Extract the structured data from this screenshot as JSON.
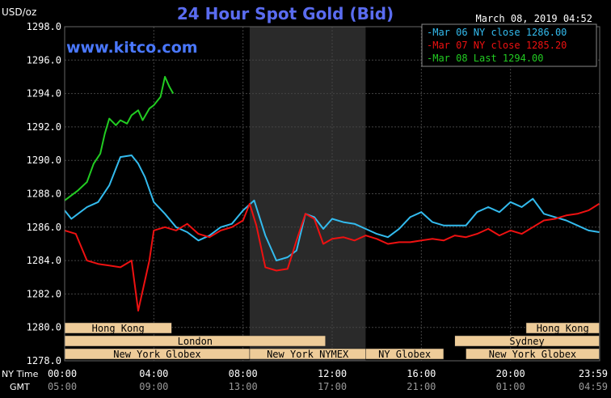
{
  "header": {
    "unit": "USD/oz",
    "title": "24 Hour Spot Gold (Bid)",
    "timestamp": "March 08, 2019 04:52",
    "watermark": "www.kitco.com"
  },
  "colors": {
    "background": "#000000",
    "title": "#5a6cf0",
    "watermark": "#4a78ff",
    "axis_text": "#ffffff",
    "grid": "#444444",
    "shade": "#2a2a2a",
    "series_mar06": "#33bbee",
    "series_mar07": "#ee1111",
    "series_mar08": "#22cc22",
    "session_bar_fill": "#eecc99",
    "session_bar_text": "#000000"
  },
  "chart_data": {
    "type": "line",
    "title": "24 Hour Spot Gold (Bid)",
    "ylabel": "USD/oz",
    "ylim": [
      1278.0,
      1298.0
    ],
    "xlim_hours_ny": [
      0,
      24
    ],
    "y_ticks": [
      "1298.0",
      "1296.0",
      "1294.0",
      "1292.0",
      "1290.0",
      "1288.0",
      "1286.0",
      "1284.0",
      "1282.0",
      "1280.0",
      "1278.0"
    ],
    "x_row_labels": [
      "NY Time",
      "GMT"
    ],
    "x_ticks_ny": [
      "00:00",
      "04:00",
      "08:00",
      "12:00",
      "16:00",
      "20:00",
      "23:59"
    ],
    "x_ticks_gmt": [
      "05:00",
      "09:00",
      "13:00",
      "17:00",
      "21:00",
      "01:00",
      "04:59"
    ],
    "shaded_region_hours": [
      8.3,
      13.5
    ],
    "grid": true,
    "legend": {
      "placement": "top-right",
      "entries": [
        {
          "label": "Mar 06 NY close 1286.00",
          "color": "#33bbee"
        },
        {
          "label": "Mar 07 NY close 1285.20",
          "color": "#ee1111"
        },
        {
          "label": "Mar 08 Last 1294.00",
          "color": "#22cc22"
        }
      ]
    },
    "series": [
      {
        "name": "Mar 06",
        "color": "#33bbee",
        "x": [
          0,
          0.3,
          0.6,
          1.0,
          1.5,
          2.0,
          2.5,
          3.0,
          3.3,
          3.6,
          4.0,
          4.5,
          5.0,
          5.5,
          6.0,
          6.5,
          7.0,
          7.5,
          8.0,
          8.5,
          9.0,
          9.5,
          10.0,
          10.4,
          10.8,
          11.2,
          11.6,
          12.0,
          12.5,
          13.0,
          13.5,
          14.0,
          14.5,
          15.0,
          15.5,
          16.0,
          16.5,
          17.0,
          17.5,
          18.0,
          18.5,
          19.0,
          19.5,
          20.0,
          20.5,
          21.0,
          21.5,
          22.0,
          22.5,
          23.0,
          23.5,
          23.98
        ],
        "y": [
          1287.0,
          1286.5,
          1286.8,
          1287.2,
          1287.5,
          1288.5,
          1290.2,
          1290.3,
          1289.8,
          1289.0,
          1287.5,
          1286.8,
          1286.0,
          1285.7,
          1285.2,
          1285.5,
          1286.0,
          1286.2,
          1287.0,
          1287.6,
          1285.5,
          1284.0,
          1284.2,
          1284.6,
          1286.8,
          1286.6,
          1285.9,
          1286.5,
          1286.3,
          1286.2,
          1285.9,
          1285.6,
          1285.4,
          1285.9,
          1286.6,
          1286.9,
          1286.3,
          1286.1,
          1286.1,
          1286.1,
          1286.9,
          1287.2,
          1286.9,
          1287.5,
          1287.2,
          1287.7,
          1286.8,
          1286.6,
          1286.4,
          1286.1,
          1285.8,
          1285.7
        ]
      },
      {
        "name": "Mar 07",
        "color": "#ee1111",
        "x": [
          0,
          0.5,
          1.0,
          1.5,
          2.0,
          2.5,
          3.0,
          3.3,
          3.6,
          3.8,
          4.0,
          4.5,
          5.0,
          5.5,
          6.0,
          6.5,
          7.0,
          7.5,
          8.0,
          8.3,
          8.6,
          9.0,
          9.5,
          10.0,
          10.4,
          10.8,
          11.2,
          11.6,
          12.0,
          12.5,
          13.0,
          13.5,
          14.0,
          14.5,
          15.0,
          15.5,
          16.0,
          16.5,
          17.0,
          17.5,
          18.0,
          18.5,
          19.0,
          19.5,
          20.0,
          20.5,
          21.0,
          21.5,
          22.0,
          22.5,
          23.0,
          23.5,
          23.98
        ],
        "y": [
          1285.8,
          1285.6,
          1284.0,
          1283.8,
          1283.7,
          1283.6,
          1284.0,
          1281.0,
          1282.8,
          1284.0,
          1285.8,
          1286.0,
          1285.8,
          1286.2,
          1285.6,
          1285.4,
          1285.8,
          1286.0,
          1286.4,
          1287.4,
          1286.1,
          1283.6,
          1283.4,
          1283.5,
          1285.2,
          1286.8,
          1286.5,
          1285.0,
          1285.3,
          1285.4,
          1285.2,
          1285.5,
          1285.3,
          1285.0,
          1285.1,
          1285.1,
          1285.2,
          1285.3,
          1285.2,
          1285.5,
          1285.4,
          1285.6,
          1285.9,
          1285.5,
          1285.8,
          1285.6,
          1286.0,
          1286.4,
          1286.5,
          1286.7,
          1286.8,
          1287.0,
          1287.4
        ]
      },
      {
        "name": "Mar 08",
        "color": "#22cc22",
        "x": [
          0,
          0.3,
          0.6,
          1.0,
          1.3,
          1.6,
          1.8,
          2.0,
          2.3,
          2.5,
          2.8,
          3.0,
          3.3,
          3.5,
          3.8,
          4.0,
          4.3,
          4.5,
          4.7,
          4.87
        ],
        "y": [
          1287.6,
          1287.9,
          1288.2,
          1288.7,
          1289.8,
          1290.4,
          1291.6,
          1292.5,
          1292.1,
          1292.4,
          1292.2,
          1292.7,
          1293.0,
          1292.4,
          1293.1,
          1293.3,
          1293.8,
          1295.0,
          1294.4,
          1294.0
        ]
      }
    ],
    "sessions": [
      {
        "label": "Hong Kong",
        "row": 0,
        "start": 0,
        "end": 4.8
      },
      {
        "label": "Hong Kong",
        "row": 0,
        "start": 20.7,
        "end": 23.98
      },
      {
        "label": "London",
        "row": 1,
        "start": 0,
        "end": 11.7
      },
      {
        "label": "Sydney",
        "row": 1,
        "start": 17.5,
        "end": 23.98
      },
      {
        "label": "New York Globex",
        "row": 2,
        "start": 0,
        "end": 8.3
      },
      {
        "label": "New York NYMEX",
        "row": 2,
        "start": 8.3,
        "end": 13.5
      },
      {
        "label": "NY Globex",
        "row": 2,
        "start": 13.5,
        "end": 17.0
      },
      {
        "label": "New York Globex",
        "row": 2,
        "start": 18.0,
        "end": 23.98
      }
    ]
  }
}
